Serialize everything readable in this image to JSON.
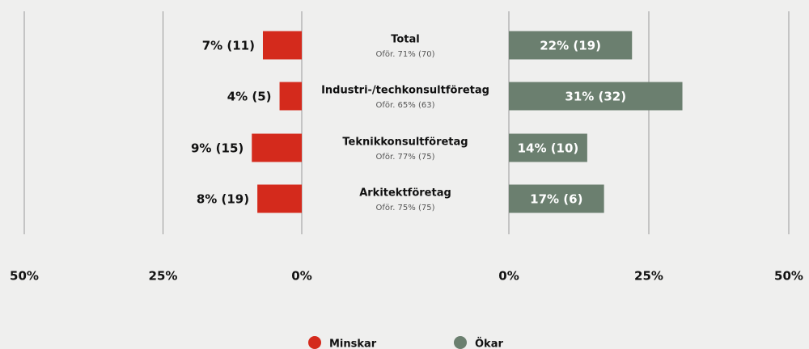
{
  "chart_data": {
    "type": "bar",
    "categories": [
      "Total",
      "Industri-/techkonsultföretag",
      "Teknikkonsultföretag",
      "Arkitektföretag"
    ],
    "subtitles": [
      "Oför. 71% (70)",
      "Oför. 65% (63)",
      "Oför. 77% (75)",
      "Oför. 75% (75)"
    ],
    "series": [
      {
        "name": "Minskar",
        "color": "#d42a1c",
        "values": [
          7,
          4,
          9,
          8
        ],
        "value_labels": [
          "7% (11)",
          "4% (5)",
          "9% (15)",
          "8% (19)"
        ]
      },
      {
        "name": "Ökar",
        "color": "#6b7f6f",
        "values": [
          22,
          31,
          14,
          17
        ],
        "value_labels": [
          "22% (19)",
          "31% (32)",
          "14% (10)",
          "17% (6)"
        ]
      }
    ],
    "xlim": [
      0,
      50
    ],
    "xticks": [
      {
        "value": 0,
        "label": "0%"
      },
      {
        "value": 25,
        "label": "25%"
      },
      {
        "value": 50,
        "label": "50%"
      }
    ],
    "grid": true
  }
}
